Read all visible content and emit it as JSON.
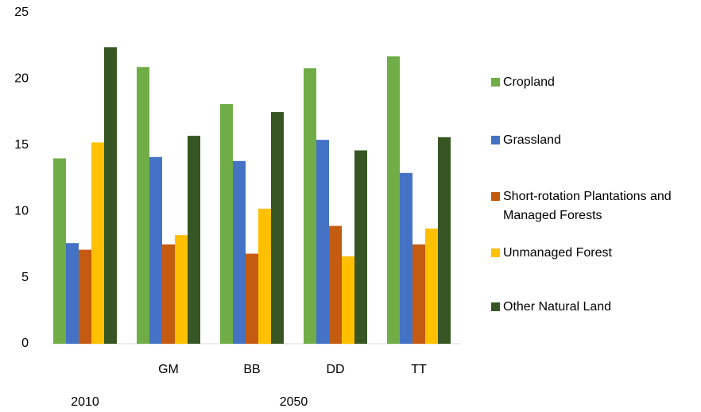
{
  "chart_data": {
    "type": "bar",
    "categories": [
      null,
      "GM",
      "BB",
      "DD",
      "TT"
    ],
    "group_labels": [
      "2010",
      "2050"
    ],
    "series": [
      {
        "name": "Cropland",
        "color": "#70ad47",
        "values": [
          14.0,
          20.9,
          18.1,
          20.8,
          21.7
        ]
      },
      {
        "name": "Grassland",
        "color": "#4472c4",
        "values": [
          7.6,
          14.1,
          13.8,
          15.4,
          12.9
        ]
      },
      {
        "name": "Short-rotation Plantations and Managed Forests",
        "color": "#c55a11",
        "values": [
          7.1,
          7.5,
          6.8,
          8.9,
          7.5
        ]
      },
      {
        "name": "Unmanaged Forest",
        "color": "#ffc000",
        "values": [
          15.2,
          8.2,
          10.2,
          6.6,
          8.7
        ]
      },
      {
        "name": "Other Natural Land",
        "color": "#375623",
        "values": [
          22.4,
          15.7,
          17.5,
          14.6,
          15.6
        ]
      }
    ],
    "ylim": [
      0,
      25
    ],
    "yticks": [
      0,
      5,
      10,
      15,
      20,
      25
    ],
    "grid": false,
    "legend": "right"
  }
}
